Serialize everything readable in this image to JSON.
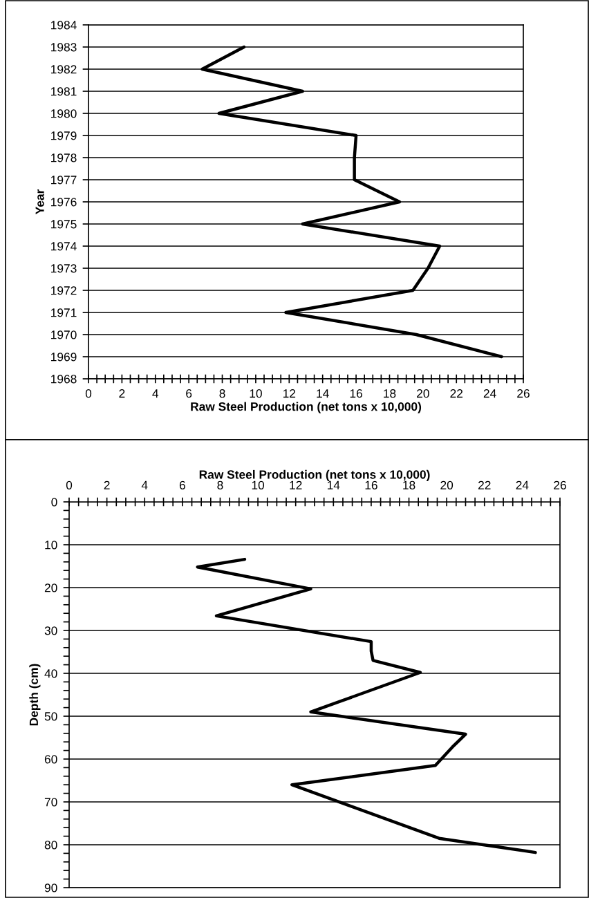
{
  "chart_data": [
    {
      "type": "line",
      "xlabel": "Raw Steel Production (net tons x 10,000)",
      "ylabel": "Year",
      "xlim": [
        0,
        26
      ],
      "xticks": [
        0,
        {
          "value": 0.5,
          "label": null
        },
        {
          "value": 1,
          "label": null
        },
        {
          "value": 1.5,
          "label": null
        },
        2,
        {
          "value": 2.5,
          "label": null
        },
        {
          "value": 3,
          "label": null
        },
        {
          "value": 3.5,
          "label": null
        },
        4,
        {
          "value": 4.5,
          "label": null
        },
        {
          "value": 5,
          "label": null
        },
        {
          "value": 5.5,
          "label": null
        },
        6,
        {
          "value": 6.5,
          "label": null
        },
        {
          "value": 7,
          "label": null
        },
        {
          "value": 7.5,
          "label": null
        },
        8,
        {
          "value": 8.5,
          "label": null
        },
        {
          "value": 9,
          "label": null
        },
        {
          "value": 9.5,
          "label": null
        },
        10,
        {
          "value": 10.5,
          "label": null
        },
        {
          "value": 11,
          "label": null
        },
        {
          "value": 11.5,
          "label": null
        },
        12,
        {
          "value": 12.5,
          "label": null
        },
        {
          "value": 13,
          "label": null
        },
        {
          "value": 13.5,
          "label": null
        },
        14,
        {
          "value": 14.5,
          "label": null
        },
        {
          "value": 15,
          "label": null
        },
        {
          "value": 15.5,
          "label": null
        },
        16,
        {
          "value": 16.5,
          "label": null
        },
        {
          "value": 17,
          "label": null
        },
        {
          "value": 17.5,
          "label": null
        },
        18,
        {
          "value": 18.5,
          "label": null
        },
        {
          "value": 19,
          "label": null
        },
        {
          "value": 19.5,
          "label": null
        },
        20,
        {
          "value": 20.5,
          "label": null
        },
        {
          "value": 21,
          "label": null
        },
        {
          "value": 21.5,
          "label": null
        },
        22,
        {
          "value": 22.5,
          "label": null
        },
        {
          "value": 23,
          "label": null
        },
        {
          "value": 23.5,
          "label": null
        },
        24,
        {
          "value": 24.5,
          "label": null
        },
        {
          "value": 25,
          "label": null
        },
        {
          "value": 25.5,
          "label": null
        },
        26
      ],
      "ylim": [
        1968,
        1984
      ],
      "yticks": [
        1968,
        1969,
        1970,
        1971,
        1972,
        1973,
        1974,
        1975,
        1976,
        1977,
        1978,
        1979,
        1980,
        1981,
        1982,
        1983,
        1984
      ],
      "grid": "y",
      "series": [
        {
          "color": "#000000",
          "x": [
            24.7,
            19.6,
            11.8,
            19.4,
            20.3,
            21.0,
            12.8,
            18.6,
            15.9,
            15.9,
            16.0,
            7.8,
            12.8,
            6.8,
            9.3
          ],
          "values": [
            1969,
            1970,
            1971,
            1972,
            1973,
            1974,
            1975,
            1976,
            1977,
            1978,
            1979,
            1980,
            1981,
            1982,
            1983
          ]
        }
      ]
    },
    {
      "type": "line",
      "xlabel": "Raw Steel Production (net tons x 10,000)",
      "ylabel": "Depth (cm)",
      "xlim": [
        0,
        26
      ],
      "xticks": [
        0,
        {
          "value": 0.5,
          "label": null
        },
        {
          "value": 1,
          "label": null
        },
        {
          "value": 1.5,
          "label": null
        },
        2,
        {
          "value": 2.5,
          "label": null
        },
        {
          "value": 3,
          "label": null
        },
        {
          "value": 3.5,
          "label": null
        },
        4,
        {
          "value": 4.5,
          "label": null
        },
        {
          "value": 5,
          "label": null
        },
        {
          "value": 5.5,
          "label": null
        },
        6,
        {
          "value": 6.5,
          "label": null
        },
        {
          "value": 7,
          "label": null
        },
        {
          "value": 7.5,
          "label": null
        },
        8,
        {
          "value": 8.5,
          "label": null
        },
        {
          "value": 9,
          "label": null
        },
        {
          "value": 9.5,
          "label": null
        },
        10,
        {
          "value": 10.5,
          "label": null
        },
        {
          "value": 11,
          "label": null
        },
        {
          "value": 11.5,
          "label": null
        },
        12,
        {
          "value": 12.5,
          "label": null
        },
        {
          "value": 13,
          "label": null
        },
        {
          "value": 13.5,
          "label": null
        },
        14,
        {
          "value": 14.5,
          "label": null
        },
        {
          "value": 15,
          "label": null
        },
        {
          "value": 15.5,
          "label": null
        },
        16,
        {
          "value": 16.5,
          "label": null
        },
        {
          "value": 17,
          "label": null
        },
        {
          "value": 17.5,
          "label": null
        },
        18,
        {
          "value": 18.5,
          "label": null
        },
        {
          "value": 19,
          "label": null
        },
        {
          "value": 19.5,
          "label": null
        },
        20,
        {
          "value": 20.5,
          "label": null
        },
        {
          "value": 21,
          "label": null
        },
        {
          "value": 21.5,
          "label": null
        },
        22,
        {
          "value": 22.5,
          "label": null
        },
        {
          "value": 23,
          "label": null
        },
        {
          "value": 23.5,
          "label": null
        },
        24,
        {
          "value": 24.5,
          "label": null
        },
        {
          "value": 25,
          "label": null
        },
        {
          "value": 25.5,
          "label": null
        },
        26
      ],
      "ylim": [
        90,
        0
      ],
      "yticks": [
        0,
        {
          "value": 2,
          "label": null
        },
        {
          "value": 4,
          "label": null
        },
        {
          "value": 6,
          "label": null
        },
        {
          "value": 8,
          "label": null
        },
        10,
        {
          "value": 12,
          "label": null
        },
        {
          "value": 14,
          "label": null
        },
        {
          "value": 16,
          "label": null
        },
        {
          "value": 18,
          "label": null
        },
        20,
        {
          "value": 22,
          "label": null
        },
        {
          "value": 24,
          "label": null
        },
        {
          "value": 26,
          "label": null
        },
        {
          "value": 28,
          "label": null
        },
        30,
        {
          "value": 32,
          "label": null
        },
        {
          "value": 34,
          "label": null
        },
        {
          "value": 36,
          "label": null
        },
        {
          "value": 38,
          "label": null
        },
        40,
        {
          "value": 42,
          "label": null
        },
        {
          "value": 44,
          "label": null
        },
        {
          "value": 46,
          "label": null
        },
        {
          "value": 48,
          "label": null
        },
        50,
        {
          "value": 52,
          "label": null
        },
        {
          "value": 54,
          "label": null
        },
        {
          "value": 56,
          "label": null
        },
        {
          "value": 58,
          "label": null
        },
        60,
        {
          "value": 62,
          "label": null
        },
        {
          "value": 64,
          "label": null
        },
        {
          "value": 66,
          "label": null
        },
        {
          "value": 68,
          "label": null
        },
        70,
        {
          "value": 72,
          "label": null
        },
        {
          "value": 74,
          "label": null
        },
        {
          "value": 76,
          "label": null
        },
        {
          "value": 78,
          "label": null
        },
        80,
        {
          "value": 82,
          "label": null
        },
        {
          "value": 84,
          "label": null
        },
        {
          "value": 86,
          "label": null
        },
        {
          "value": 88,
          "label": null
        },
        90
      ],
      "grid": "y",
      "series": [
        {
          "color": "#000000",
          "x": [
            9.3,
            6.8,
            12.8,
            7.8,
            16.0,
            16.0,
            16.1,
            18.6,
            12.8,
            21.0,
            20.3,
            19.4,
            11.8,
            19.6,
            24.7
          ],
          "values": [
            13.4,
            15.2,
            20.3,
            26.6,
            32.6,
            34.8,
            37.0,
            39.8,
            49.0,
            54.2,
            57.2,
            61.5,
            66.0,
            78.5,
            81.8
          ]
        }
      ]
    }
  ]
}
